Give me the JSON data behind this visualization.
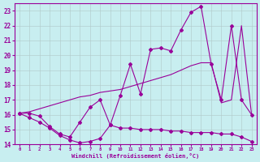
{
  "xlabel": "Windchill (Refroidissement éolien,°C)",
  "background_color": "#c8eef0",
  "line_color": "#990099",
  "grid_color": "#b0c8c8",
  "xlim": [
    -0.5,
    23.5
  ],
  "ylim": [
    14,
    23.5
  ],
  "yticks": [
    14,
    15,
    16,
    17,
    18,
    19,
    20,
    21,
    22,
    23
  ],
  "xticks": [
    0,
    1,
    2,
    3,
    4,
    5,
    6,
    7,
    8,
    9,
    10,
    11,
    12,
    13,
    14,
    15,
    16,
    17,
    18,
    19,
    20,
    21,
    22,
    23
  ],
  "line1_x": [
    0,
    1,
    2,
    3,
    4,
    5,
    6,
    7,
    8,
    9,
    10,
    11,
    12,
    13,
    14,
    15,
    16,
    17,
    18,
    19,
    20,
    21,
    22,
    23
  ],
  "line1_y": [
    16.1,
    15.8,
    15.5,
    15.1,
    14.6,
    14.3,
    14.1,
    14.2,
    14.4,
    15.3,
    15.1,
    15.1,
    15.0,
    15.0,
    15.0,
    14.9,
    14.9,
    14.8,
    14.8,
    14.8,
    14.7,
    14.7,
    14.5,
    14.2
  ],
  "line2_x": [
    0,
    1,
    2,
    3,
    4,
    5,
    6,
    7,
    8,
    9,
    10,
    11,
    12,
    13,
    14,
    15,
    16,
    17,
    18,
    19,
    20,
    21,
    22,
    23
  ],
  "line2_y": [
    16.1,
    16.2,
    16.4,
    16.6,
    16.8,
    17.0,
    17.2,
    17.3,
    17.5,
    17.6,
    17.7,
    17.9,
    18.1,
    18.3,
    18.5,
    18.7,
    19.0,
    19.3,
    19.5,
    19.5,
    16.8,
    17.0,
    22.0,
    16.0
  ],
  "line3_x": [
    0,
    1,
    2,
    3,
    4,
    5,
    6,
    7,
    8,
    9,
    10,
    11,
    12,
    13,
    14,
    15,
    16,
    17,
    18,
    19,
    20,
    21,
    22,
    23
  ],
  "line3_y": [
    16.1,
    16.1,
    15.9,
    15.2,
    14.7,
    14.5,
    15.5,
    16.5,
    17.0,
    15.3,
    17.3,
    19.4,
    17.4,
    20.4,
    20.5,
    20.3,
    21.7,
    22.9,
    23.3,
    19.4,
    17.0,
    22.0,
    17.0,
    16.0
  ],
  "line3_markers_x": [
    0,
    2,
    3,
    4,
    7,
    8,
    9,
    10,
    11,
    12,
    13,
    14,
    15,
    16,
    17,
    18,
    19,
    20,
    21,
    22,
    23
  ],
  "line3_markers_y": [
    16.1,
    15.9,
    15.2,
    14.7,
    16.5,
    17.0,
    15.3,
    17.3,
    19.4,
    17.4,
    20.4,
    20.5,
    20.3,
    21.7,
    22.9,
    23.3,
    19.4,
    17.0,
    22.0,
    17.0,
    16.0
  ]
}
